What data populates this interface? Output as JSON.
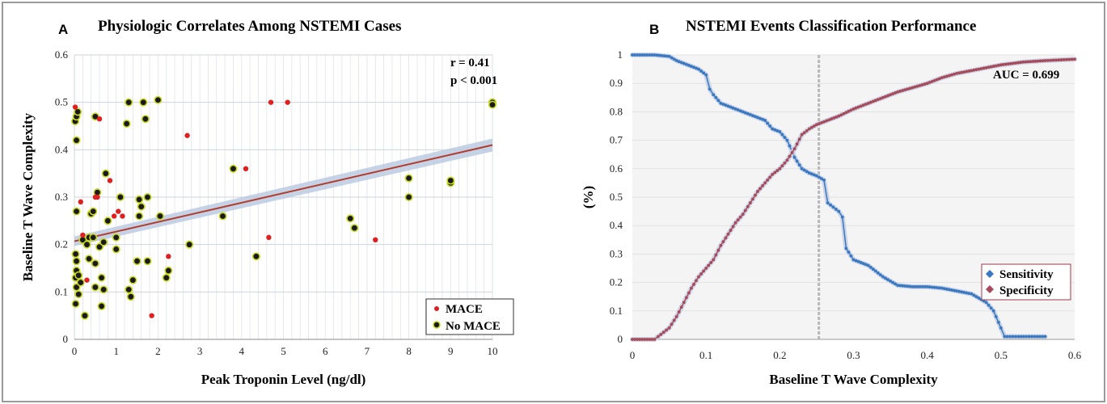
{
  "figure": {
    "panel_a_label": "A",
    "panel_b_label": "B"
  },
  "chart_data": [
    {
      "type": "scatter",
      "title": "Physiologic Correlates Among NSTEMI Cases",
      "xlabel": "Peak Troponin Level (ng/dl)",
      "ylabel": "Baseline T Wave Complexity",
      "xlim": [
        0,
        10
      ],
      "ylim": [
        0,
        0.6
      ],
      "x_ticks": [
        "0",
        "1",
        "2",
        "3",
        "4",
        "5",
        "6",
        "7",
        "8",
        "9",
        "10"
      ],
      "y_ticks": [
        "0",
        "0.1",
        "0.2",
        "0.3",
        "0.4",
        "0.5",
        "0.6"
      ],
      "grid": true,
      "annotations": [
        "r = 0.41",
        "p < 0.001"
      ],
      "legend_position": "bottom-right",
      "series": [
        {
          "name": "MACE",
          "color": "#e02020",
          "marker": "filled-dot",
          "points": [
            [
              0.02,
              0.49
            ],
            [
              0.15,
              0.29
            ],
            [
              0.2,
              0.22
            ],
            [
              0.3,
              0.125
            ],
            [
              0.5,
              0.3
            ],
            [
              0.55,
              0.3
            ],
            [
              0.6,
              0.465
            ],
            [
              0.85,
              0.335
            ],
            [
              0.95,
              0.26
            ],
            [
              1.05,
              0.27
            ],
            [
              1.15,
              0.26
            ],
            [
              1.85,
              0.05
            ],
            [
              2.25,
              0.175
            ],
            [
              2.7,
              0.43
            ],
            [
              4.1,
              0.36
            ],
            [
              4.65,
              0.215
            ],
            [
              4.7,
              0.5
            ],
            [
              5.1,
              0.5
            ],
            [
              7.2,
              0.21
            ]
          ]
        },
        {
          "name": "No MACE",
          "color": "#c8d820",
          "marker": "ring",
          "points": [
            [
              0.02,
              0.46
            ],
            [
              0.05,
              0.42
            ],
            [
              0.05,
              0.47
            ],
            [
              0.08,
              0.48
            ],
            [
              0.05,
              0.27
            ],
            [
              0.03,
              0.18
            ],
            [
              0.05,
              0.165
            ],
            [
              0.05,
              0.145
            ],
            [
              0.03,
              0.13
            ],
            [
              0.05,
              0.11
            ],
            [
              0.1,
              0.095
            ],
            [
              0.03,
              0.075
            ],
            [
              0.15,
              0.12
            ],
            [
              0.1,
              0.135
            ],
            [
              0.2,
              0.21
            ],
            [
              0.25,
              0.05
            ],
            [
              0.3,
              0.2
            ],
            [
              0.35,
              0.215
            ],
            [
              0.35,
              0.17
            ],
            [
              0.4,
              0.265
            ],
            [
              0.45,
              0.27
            ],
            [
              0.45,
              0.215
            ],
            [
              0.5,
              0.16
            ],
            [
              0.5,
              0.11
            ],
            [
              0.5,
              0.47
            ],
            [
              0.55,
              0.31
            ],
            [
              0.6,
              0.195
            ],
            [
              0.65,
              0.13
            ],
            [
              0.7,
              0.205
            ],
            [
              0.7,
              0.105
            ],
            [
              0.65,
              0.07
            ],
            [
              0.75,
              0.35
            ],
            [
              0.8,
              0.25
            ],
            [
              1.0,
              0.19
            ],
            [
              1.0,
              0.215
            ],
            [
              1.1,
              0.3
            ],
            [
              1.25,
              0.455
            ],
            [
              1.3,
              0.5
            ],
            [
              1.3,
              0.105
            ],
            [
              1.35,
              0.09
            ],
            [
              1.4,
              0.125
            ],
            [
              1.5,
              0.165
            ],
            [
              1.55,
              0.26
            ],
            [
              1.55,
              0.295
            ],
            [
              1.6,
              0.28
            ],
            [
              1.65,
              0.5
            ],
            [
              1.7,
              0.465
            ],
            [
              1.75,
              0.3
            ],
            [
              1.75,
              0.165
            ],
            [
              2.0,
              0.505
            ],
            [
              2.05,
              0.26
            ],
            [
              2.2,
              0.13
            ],
            [
              2.25,
              0.145
            ],
            [
              2.75,
              0.2
            ],
            [
              3.55,
              0.26
            ],
            [
              3.8,
              0.36
            ],
            [
              4.35,
              0.175
            ],
            [
              6.6,
              0.255
            ],
            [
              6.7,
              0.235
            ],
            [
              8.0,
              0.34
            ],
            [
              8.0,
              0.3
            ],
            [
              9.0,
              0.33
            ],
            [
              9.0,
              0.335
            ],
            [
              10.0,
              0.5
            ],
            [
              10.0,
              0.495
            ]
          ]
        }
      ],
      "trend_line": {
        "x": [
          0,
          10
        ],
        "y": [
          0.207,
          0.41
        ],
        "color": "#b23b2a",
        "band_color": "#b8c8e0"
      }
    },
    {
      "type": "line",
      "title": "NSTEMI Events Classification Performance",
      "xlabel": "Baseline T Wave Complexity",
      "ylabel": "(%)",
      "xlim": [
        0,
        0.6
      ],
      "ylim": [
        0,
        1
      ],
      "x_ticks": [
        "0",
        "0.1",
        "0.2",
        "0.3",
        "0.4",
        "0.5",
        "0.6"
      ],
      "y_ticks": [
        "0",
        "0.1",
        "0.2",
        "0.3",
        "0.4",
        "0.5",
        "0.6",
        "0.7",
        "0.8",
        "0.9",
        "1"
      ],
      "grid": true,
      "annotations": [
        "AUC = 0.699"
      ],
      "legend_position": "bottom-right",
      "vertical_marker_x": 0.253,
      "series": [
        {
          "name": "Sensitivity",
          "color": "#3a78c2",
          "points": [
            [
              0.0,
              1.0
            ],
            [
              0.03,
              1.0
            ],
            [
              0.05,
              0.995
            ],
            [
              0.06,
              0.98
            ],
            [
              0.07,
              0.97
            ],
            [
              0.08,
              0.96
            ],
            [
              0.09,
              0.95
            ],
            [
              0.1,
              0.93
            ],
            [
              0.105,
              0.88
            ],
            [
              0.11,
              0.86
            ],
            [
              0.12,
              0.83
            ],
            [
              0.14,
              0.81
            ],
            [
              0.16,
              0.79
            ],
            [
              0.18,
              0.77
            ],
            [
              0.19,
              0.74
            ],
            [
              0.2,
              0.73
            ],
            [
              0.21,
              0.7
            ],
            [
              0.22,
              0.64
            ],
            [
              0.23,
              0.6
            ],
            [
              0.24,
              0.585
            ],
            [
              0.25,
              0.575
            ],
            [
              0.26,
              0.56
            ],
            [
              0.265,
              0.48
            ],
            [
              0.28,
              0.45
            ],
            [
              0.285,
              0.43
            ],
            [
              0.29,
              0.32
            ],
            [
              0.3,
              0.28
            ],
            [
              0.32,
              0.26
            ],
            [
              0.34,
              0.22
            ],
            [
              0.36,
              0.19
            ],
            [
              0.38,
              0.185
            ],
            [
              0.4,
              0.185
            ],
            [
              0.42,
              0.18
            ],
            [
              0.44,
              0.17
            ],
            [
              0.46,
              0.16
            ],
            [
              0.48,
              0.13
            ],
            [
              0.49,
              0.1
            ],
            [
              0.5,
              0.04
            ],
            [
              0.505,
              0.01
            ],
            [
              0.52,
              0.01
            ],
            [
              0.56,
              0.01
            ]
          ]
        },
        {
          "name": "Specificity",
          "color": "#a84a5a",
          "points": [
            [
              0.0,
              0.0
            ],
            [
              0.03,
              0.0
            ],
            [
              0.035,
              0.01
            ],
            [
              0.05,
              0.04
            ],
            [
              0.06,
              0.08
            ],
            [
              0.07,
              0.13
            ],
            [
              0.08,
              0.18
            ],
            [
              0.09,
              0.22
            ],
            [
              0.1,
              0.25
            ],
            [
              0.11,
              0.28
            ],
            [
              0.12,
              0.33
            ],
            [
              0.13,
              0.37
            ],
            [
              0.14,
              0.41
            ],
            [
              0.15,
              0.44
            ],
            [
              0.16,
              0.48
            ],
            [
              0.17,
              0.52
            ],
            [
              0.18,
              0.55
            ],
            [
              0.19,
              0.58
            ],
            [
              0.2,
              0.6
            ],
            [
              0.21,
              0.63
            ],
            [
              0.22,
              0.67
            ],
            [
              0.23,
              0.72
            ],
            [
              0.24,
              0.74
            ],
            [
              0.25,
              0.755
            ],
            [
              0.26,
              0.765
            ],
            [
              0.28,
              0.785
            ],
            [
              0.3,
              0.81
            ],
            [
              0.32,
              0.83
            ],
            [
              0.34,
              0.85
            ],
            [
              0.36,
              0.87
            ],
            [
              0.38,
              0.885
            ],
            [
              0.4,
              0.9
            ],
            [
              0.42,
              0.92
            ],
            [
              0.44,
              0.935
            ],
            [
              0.46,
              0.945
            ],
            [
              0.48,
              0.955
            ],
            [
              0.5,
              0.965
            ],
            [
              0.53,
              0.975
            ],
            [
              0.56,
              0.98
            ],
            [
              0.6,
              0.985
            ]
          ]
        }
      ]
    }
  ]
}
